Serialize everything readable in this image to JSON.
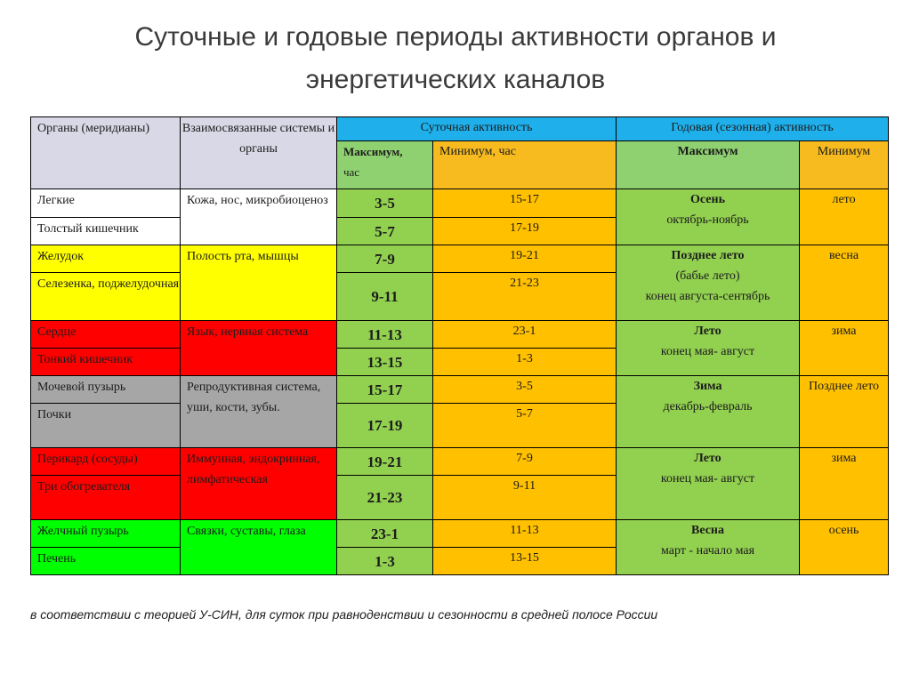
{
  "title": {
    "line1": "Суточные и годовые периоды активности органов и",
    "line2": "энергетических каналов"
  },
  "table": {
    "headers": {
      "organs": "Органы (меридианы)",
      "systems": "Взаимосвязанные системы и органы",
      "daily": "Суточная активность",
      "daily_max": "Максимум, час",
      "daily_min": "Минимум, час",
      "yearly": "Годовая (сезонная) активность",
      "yearly_max": "Максимум",
      "yearly_min": "Минимум"
    },
    "groups": [
      {
        "color": "#ffffff",
        "systems": "Кожа, нос, микробиоценоз",
        "season_title": "Осень",
        "season_period": "октябрь-ноябрь",
        "season_min": "лето",
        "rows": [
          {
            "organ": "Легкие",
            "max": "3-5",
            "min": "15-17"
          },
          {
            "organ": "Толстый кишечник",
            "max": "5-7",
            "min": "17-19"
          }
        ]
      },
      {
        "color": "#ffff00",
        "systems": "Полость рта, мышцы",
        "season_title": "Позднее лето",
        "season_sub": "(бабье лето)",
        "season_period": "конец августа-сентябрь",
        "season_min": "весна",
        "rows": [
          {
            "organ": "Желудок",
            "max": "7-9",
            "min": "19-21"
          },
          {
            "organ": "Селезенка, поджелудочная",
            "max": "9-11",
            "min": "21-23"
          }
        ]
      },
      {
        "color": "#ff0000",
        "systems": "Язык, нервная система",
        "season_title": "Лето",
        "season_period": "конец мая- август",
        "season_min": "зима",
        "rows": [
          {
            "organ": "Сердце",
            "max": "11-13",
            "min": "23-1"
          },
          {
            "organ": "Тонкий кишечник",
            "max": "13-15",
            "min": "1-3"
          }
        ]
      },
      {
        "color": "#a6a6a6",
        "systems": "Репродуктивная система, уши, кости, зубы.",
        "season_title": "Зима",
        "season_period": "декабрь-февраль",
        "season_min": "Позднее лето",
        "rows": [
          {
            "organ": "Мочевой пузырь",
            "max": "15-17",
            "min": "3-5"
          },
          {
            "organ": "Почки",
            "max": "17-19",
            "min": "5-7"
          }
        ]
      },
      {
        "color": "#ff0000",
        "systems": "Иммунная, эндокринная, лимфатическая",
        "season_title": "Лето",
        "season_period": "конец мая- август",
        "season_min": "зима",
        "rows": [
          {
            "organ": "Перикард (сосуды)",
            "max": "19-21",
            "min": "7-9"
          },
          {
            "organ": "Три обогревателя",
            "max": "21-23",
            "min": "9-11"
          }
        ]
      },
      {
        "color": "#00ff00",
        "systems": "Связки, суставы, глаза",
        "season_title": "Весна",
        "season_period": "март - начало мая",
        "season_min": "осень",
        "rows": [
          {
            "organ": "Желчный пузырь",
            "max": "23-1",
            "min": "11-13"
          },
          {
            "organ": "Печень",
            "max": "1-3",
            "min": "13-15"
          }
        ]
      }
    ]
  },
  "footnote": "в соответствии с теорией У-СИН, для суток при равноденствии и сезонности в средней полосе России"
}
